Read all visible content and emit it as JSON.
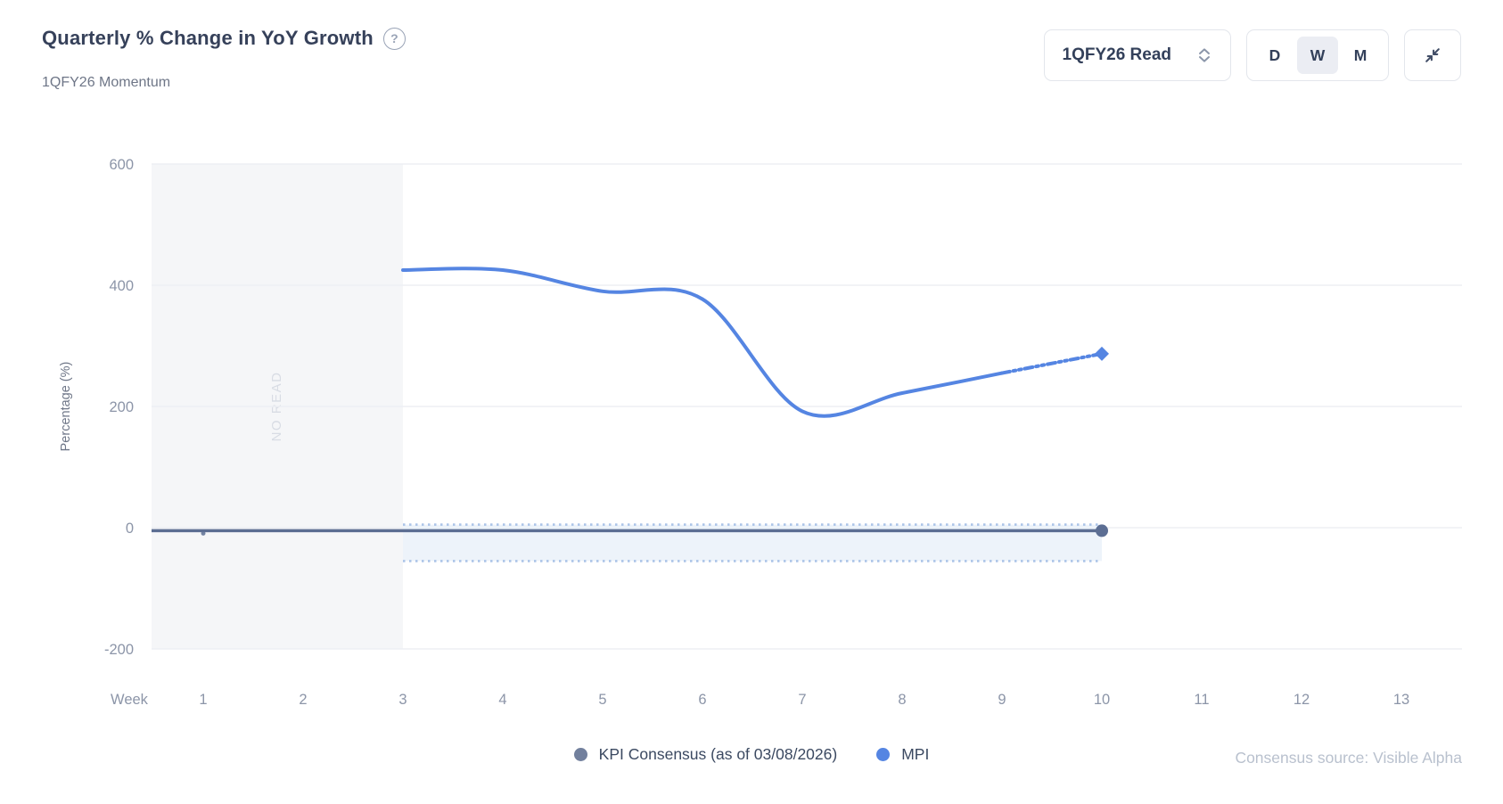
{
  "header": {
    "title": "Quarterly % Change in YoY Growth",
    "subtitle": "1QFY26 Momentum",
    "help_icon": "question-mark-circle",
    "period_select": {
      "value": "1QFY26 Read"
    },
    "granularity": {
      "options": [
        "D",
        "W",
        "M"
      ],
      "selected": "W"
    },
    "collapse_icon": "collapse-arrows"
  },
  "chart_data": {
    "type": "line",
    "title": "Quarterly % Change in YoY Growth",
    "xlabel_prefix": "Week",
    "x_categories": [
      1,
      2,
      3,
      4,
      5,
      6,
      7,
      8,
      9,
      10,
      11,
      12,
      13
    ],
    "ylabel": "Percentage (%)",
    "ylim": [
      -200,
      600
    ],
    "yticks": [
      600,
      400,
      200,
      0,
      -200
    ],
    "grid": "horizontal",
    "legend_position": "bottom-center",
    "no_read_region": {
      "label": "NO READ",
      "to_week": 3,
      "bg": "#f5f6f8",
      "text_color": "#d8dce4"
    },
    "series": [
      {
        "name": "KPI Consensus (as of 03/08/2026)",
        "color": "#5c6e93",
        "weeks": [
          1,
          2,
          3,
          4,
          5,
          6,
          7,
          8,
          9,
          10
        ],
        "values": [
          -5,
          -5,
          -5,
          -5,
          -5,
          -5,
          -5,
          -5,
          -5,
          -5
        ],
        "extends_to_plot_left": true,
        "end_marker": "circle"
      },
      {
        "name": "MPI",
        "color": "#5585e2",
        "weeks": [
          3,
          4,
          5,
          6,
          7,
          8,
          9,
          10
        ],
        "values": [
          425,
          425,
          390,
          377,
          192,
          222,
          255,
          287
        ],
        "solid_until_week": 9,
        "forecast_dashed": true,
        "end_marker": "diamond"
      }
    ],
    "consensus_band": {
      "upper": 5,
      "lower": -55,
      "from_week": 3,
      "to_week": 10,
      "style": "dotted",
      "fill": "#edf3fa",
      "line_color": "#abc4e8"
    }
  },
  "legend": {
    "items": [
      {
        "label": "KPI Consensus (as of 03/08/2026)",
        "color": "#72809d"
      },
      {
        "label": "MPI",
        "color": "#5585e2"
      }
    ]
  },
  "source_note": "Consensus source: Visible Alpha",
  "colors": {
    "title_text": "#36415a",
    "subtitle_text": "#6e7687",
    "tick_text": "#8c95a8",
    "gridline": "#edeff4",
    "accent_blue": "#5585e2",
    "consensus_slate": "#5c6e93",
    "segmented_selected_bg": "#ebedf3"
  }
}
